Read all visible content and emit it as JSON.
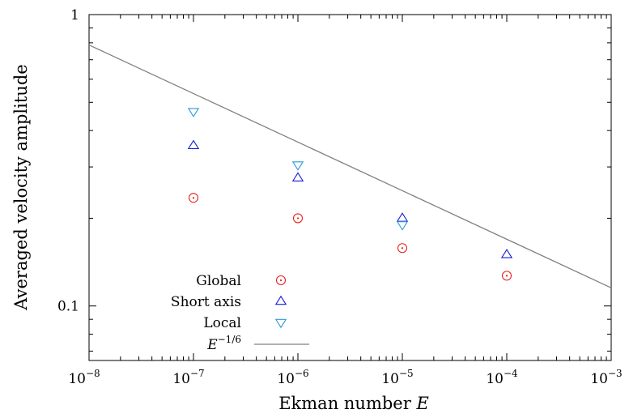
{
  "chart_data": {
    "type": "scatter",
    "xscale": "log",
    "yscale": "log",
    "xlim": [
      1e-08,
      0.001
    ],
    "ylim": [
      0.065,
      1
    ],
    "xlabel": "Ekman number E",
    "ylabel": "Averaged velocity amplitude",
    "xticks": [
      {
        "value": 1e-08,
        "base": "10",
        "exp": "−8"
      },
      {
        "value": 1e-07,
        "base": "10",
        "exp": "−7"
      },
      {
        "value": 1e-06,
        "base": "10",
        "exp": "−6"
      },
      {
        "value": 1e-05,
        "base": "10",
        "exp": "−5"
      },
      {
        "value": 0.0001,
        "base": "10",
        "exp": "−4"
      },
      {
        "value": 0.001,
        "base": "10",
        "exp": "−3"
      }
    ],
    "yticks": [
      {
        "value": 0.1,
        "label": "0.1"
      },
      {
        "value": 1,
        "label": "1"
      }
    ],
    "grid": false,
    "legend_position": "bottom-left",
    "series": [
      {
        "name": "Global",
        "marker": "circle",
        "color": "#e8201c",
        "x": [
          1e-07,
          1e-06,
          1e-05,
          0.0001
        ],
        "y": [
          0.235,
          0.2,
          0.158,
          0.127
        ]
      },
      {
        "name": "Short axis",
        "marker": "triangle-up",
        "color": "#1a1ad6",
        "x": [
          1e-07,
          1e-06,
          1e-05,
          0.0001
        ],
        "y": [
          0.355,
          0.275,
          0.2,
          0.15
        ]
      },
      {
        "name": "Local",
        "marker": "triangle-down",
        "color": "#2a9ad6",
        "x": [
          1e-07,
          1e-06,
          1e-05
        ],
        "y": [
          0.465,
          0.305,
          0.19
        ]
      }
    ],
    "line": {
      "name_base": "E",
      "name_exp": "−1/6",
      "color": "#808080",
      "exponent": -0.16667,
      "coef": 0.0365
    }
  }
}
